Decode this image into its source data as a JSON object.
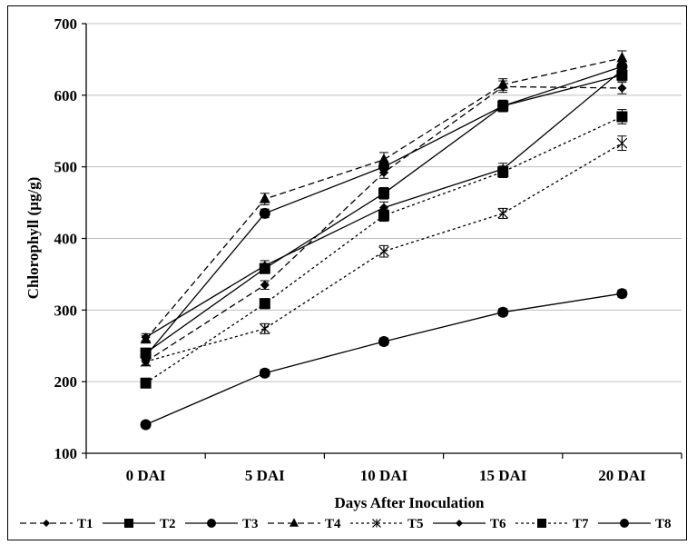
{
  "chart_data": {
    "type": "line",
    "title": "",
    "xlabel": "Days After Inoculation",
    "ylabel": "Chlorophyll (µg/g)",
    "categories": [
      "0 DAI",
      "5 DAI",
      "10 DAI",
      "15 DAI",
      "20 DAI"
    ],
    "ylim": [
      100,
      700
    ],
    "yticks": [
      100,
      200,
      300,
      400,
      500,
      600,
      700
    ],
    "grid": "horizontal",
    "legend_position": "bottom",
    "series": [
      {
        "name": "T1",
        "marker": "diamond",
        "line": "dashed",
        "values": [
          228,
          335,
          492,
          612,
          610
        ],
        "errors": [
          5,
          6,
          8,
          8,
          8
        ]
      },
      {
        "name": "T2",
        "marker": "square",
        "line": "solid",
        "values": [
          240,
          358,
          463,
          585,
          628
        ],
        "errors": [
          6,
          7,
          8,
          8,
          8
        ]
      },
      {
        "name": "T3",
        "marker": "circle",
        "line": "solid",
        "values": [
          236,
          435,
          500,
          585,
          640
        ],
        "errors": [
          6,
          6,
          8,
          8,
          8
        ]
      },
      {
        "name": "T4",
        "marker": "triangle",
        "line": "dashed",
        "values": [
          259,
          455,
          510,
          615,
          652
        ],
        "errors": [
          5,
          8,
          10,
          8,
          10
        ]
      },
      {
        "name": "T5",
        "marker": "asterisk",
        "line": "dotted",
        "values": [
          228,
          274,
          382,
          435,
          533
        ],
        "errors": [
          6,
          7,
          8,
          7,
          10
        ]
      },
      {
        "name": "T6",
        "marker": "diamond",
        "line": "solid",
        "values": [
          262,
          362,
          443,
          497,
          635
        ],
        "errors": [
          5,
          7,
          8,
          8,
          8
        ]
      },
      {
        "name": "T7",
        "marker": "square",
        "line": "dotted",
        "values": [
          198,
          309,
          432,
          493,
          570
        ],
        "errors": [
          6,
          7,
          8,
          8,
          10
        ]
      },
      {
        "name": "T8",
        "marker": "circle",
        "line": "solid",
        "values": [
          140,
          212,
          256,
          297,
          323
        ],
        "errors": [
          4,
          5,
          5,
          5,
          5
        ]
      }
    ]
  },
  "colors": {
    "line": "#000000",
    "grid": "#bfbfbf",
    "background": "#ffffff"
  }
}
